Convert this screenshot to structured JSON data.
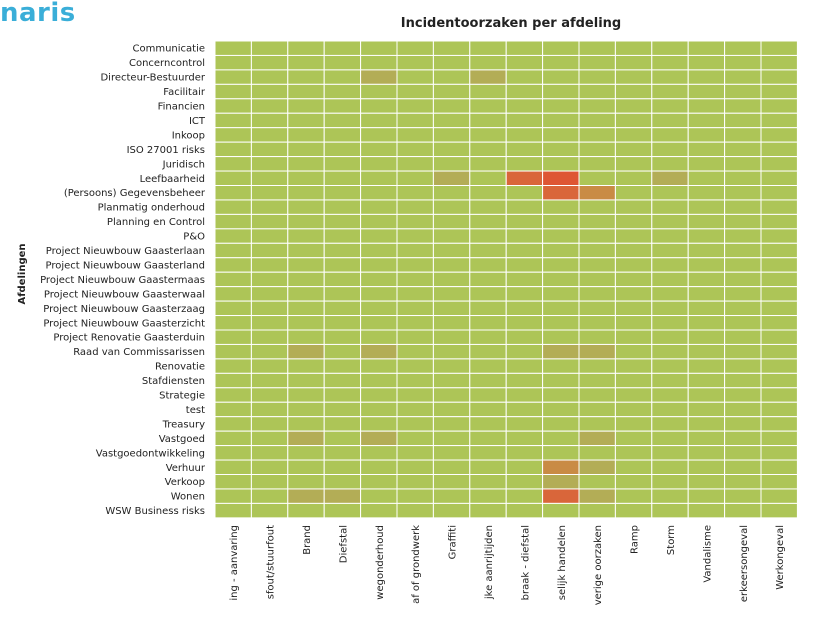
{
  "brand": "naris",
  "chart_data": {
    "type": "heatmap",
    "title": "Incidentoorzaken per afdeling",
    "ylabel": "Afdelingen",
    "xlabel": "",
    "x_categories": [
      "ing - aanvaring",
      "sfout/stuurfout",
      "Brand",
      "Diefstal",
      "wegonderhoud",
      "af of grondwerk",
      "Graffiti",
      "jke aanrijtijden",
      "braak - diefstal",
      "selijk handelen",
      "verige oorzaken",
      "Ramp",
      "Storm",
      "Vandalisme",
      "erkeersongeval",
      "Werkongeval"
    ],
    "y_categories": [
      "Communicatie",
      "Concerncontrol",
      "Directeur-Bestuurder",
      "Facilitair",
      "Financien",
      "ICT",
      "Inkoop",
      "ISO 27001 risks",
      "Juridisch",
      "Leefbaarheid",
      "(Persoons) Gegevensbeheer",
      "Planmatig onderhoud",
      "Planning en Control",
      "P&O",
      "Project Nieuwbouw Gaasterlaan",
      "Project Nieuwbouw Gaasterland",
      "Project Nieuwbouw Gaastermaas",
      "Project Nieuwbouw Gaasterwaal",
      "Project Nieuwbouw Gaasterzaag",
      "Project Nieuwbouw Gaasterzicht",
      "Project Renovatie Gaasterduin",
      "Raad van Commissarissen",
      "Renovatie",
      "Stafdiensten",
      "Strategie",
      "test",
      "Treasury",
      "Vastgoed",
      "Vastgoedontwikkeling",
      "Verhuur",
      "Verkoop",
      "Wonen",
      "WSW Business risks"
    ],
    "colors": {
      "0": "#adc557",
      "1": "#b3ad56",
      "2": "#c98b45",
      "3": "#d9663a",
      "4": "#de5634"
    },
    "cells": [
      {
        "y": "Directeur-Bestuurder",
        "x": "wegonderhoud",
        "value": 1
      },
      {
        "y": "Directeur-Bestuurder",
        "x": "jke aanrijtijden",
        "value": 1
      },
      {
        "y": "Leefbaarheid",
        "x": "Graffiti",
        "value": 1
      },
      {
        "y": "Leefbaarheid",
        "x": "braak - diefstal",
        "value": 3
      },
      {
        "y": "Leefbaarheid",
        "x": "selijk handelen",
        "value": 4
      },
      {
        "y": "Leefbaarheid",
        "x": "Storm",
        "value": 1
      },
      {
        "y": "(Persoons) Gegevensbeheer",
        "x": "selijk handelen",
        "value": 3
      },
      {
        "y": "(Persoons) Gegevensbeheer",
        "x": "verige oorzaken",
        "value": 2
      },
      {
        "y": "Raad van Commissarissen",
        "x": "Brand",
        "value": 1
      },
      {
        "y": "Raad van Commissarissen",
        "x": "wegonderhoud",
        "value": 1
      },
      {
        "y": "Raad van Commissarissen",
        "x": "selijk handelen",
        "value": 1
      },
      {
        "y": "Raad van Commissarissen",
        "x": "verige oorzaken",
        "value": 1
      },
      {
        "y": "Vastgoed",
        "x": "Brand",
        "value": 1
      },
      {
        "y": "Vastgoed",
        "x": "wegonderhoud",
        "value": 1
      },
      {
        "y": "Vastgoed",
        "x": "verige oorzaken",
        "value": 1
      },
      {
        "y": "Verhuur",
        "x": "selijk handelen",
        "value": 2
      },
      {
        "y": "Verhuur",
        "x": "verige oorzaken",
        "value": 1
      },
      {
        "y": "Verkoop",
        "x": "selijk handelen",
        "value": 1
      },
      {
        "y": "Wonen",
        "x": "Brand",
        "value": 1
      },
      {
        "y": "Wonen",
        "x": "Diefstal",
        "value": 1
      },
      {
        "y": "Wonen",
        "x": "selijk handelen",
        "value": 3
      },
      {
        "y": "Wonen",
        "x": "verige oorzaken",
        "value": 1
      }
    ]
  }
}
